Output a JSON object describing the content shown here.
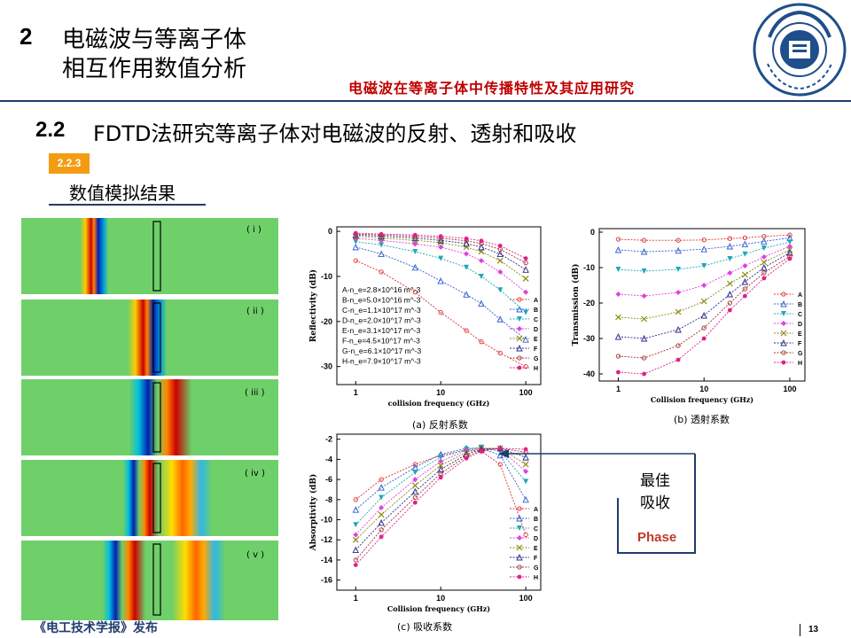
{
  "header": {
    "section_number": "2",
    "section_title_line1": "电磁波与等离子体",
    "section_title_line2": "相互作用数值分析",
    "subtitle": "电磁波在等离子体中传播特性及其应用研究",
    "logo_text": "河海大学",
    "logo_ring_text": "HOHAI UNIVERSITY"
  },
  "subsection": {
    "number": "2.2",
    "title": "FDTD法研究等离子体对电磁波的反射、透射和吸收"
  },
  "badge": "2.2.3",
  "results_title": "数值模拟结果",
  "simulation_panels": [
    "( i )",
    "( ii )",
    "( iii )",
    "( iv )",
    "( v )"
  ],
  "captions": {
    "a": "(a) 反射系数",
    "b": "(b)  透射系数",
    "c": "(c)  吸收系数"
  },
  "annotation": {
    "line1": "最佳",
    "line2": "吸收",
    "phase": "Phase"
  },
  "footer": "《电工技术学报》发布",
  "page_number": "13",
  "colors": {
    "series": [
      "#e03030",
      "#2f5fd0",
      "#20a7b8",
      "#e040e0",
      "#8a8a10",
      "#2a2a8a",
      "#a03030",
      "#e0208a"
    ],
    "accent": "#f39c12",
    "rule": "#1f3c6e",
    "subtitle": "#c00000"
  },
  "chart_data": [
    {
      "type": "line",
      "panel": "a",
      "xlabel": "collision frequency (GHz)",
      "ylabel": "Reflectivity (dB)",
      "x": [
        1,
        2,
        5,
        10,
        20,
        30,
        50,
        100
      ],
      "xscale": "log",
      "xlim": [
        0.6,
        150
      ],
      "ylim": [
        -34,
        1
      ],
      "yticks": [
        0,
        -10,
        -20,
        -30
      ],
      "xticks": [
        1,
        10,
        100
      ],
      "legend_text": [
        "A-n_e=2.8×10^16 m^-3",
        "B-n_e=5.0×10^16 m^-3",
        "C-n_e=1.1×10^17 m^-3",
        "D-n_e=2.0×10^17 m^-3",
        "E-n_e=3.1×10^17 m^-3",
        "F-n_e=4.5×10^17 m^-3",
        "G-n_e=6.1×10^17 m^-3",
        "H-n_e=7.9×10^17 m^-3"
      ],
      "series": [
        {
          "name": "A",
          "values": [
            -6.5,
            -9,
            -13.5,
            -18,
            -22,
            -24.5,
            -27,
            -30
          ]
        },
        {
          "name": "B",
          "values": [
            -3.5,
            -5,
            -8,
            -11,
            -14,
            -16,
            -19.5,
            -24
          ]
        },
        {
          "name": "C",
          "values": [
            -2.3,
            -3,
            -4.5,
            -6,
            -8,
            -10,
            -13,
            -18
          ]
        },
        {
          "name": "D",
          "values": [
            -1.6,
            -2,
            -2.8,
            -3.5,
            -5,
            -6.5,
            -9,
            -13.5
          ]
        },
        {
          "name": "E",
          "values": [
            -1.1,
            -1.5,
            -2,
            -2.5,
            -3.5,
            -4.5,
            -6.5,
            -10.5
          ]
        },
        {
          "name": "F",
          "values": [
            -0.8,
            -1.1,
            -1.5,
            -2,
            -2.7,
            -3.5,
            -5,
            -8.5
          ]
        },
        {
          "name": "G",
          "values": [
            -0.6,
            -0.8,
            -1.1,
            -1.5,
            -2.1,
            -2.7,
            -4,
            -7
          ]
        },
        {
          "name": "H",
          "values": [
            -0.4,
            -0.6,
            -0.8,
            -1.1,
            -1.6,
            -2.1,
            -3.2,
            -6
          ]
        }
      ]
    },
    {
      "type": "line",
      "panel": "b",
      "xlabel": "Collision frequency (GHz)",
      "ylabel": "Transmission (dB)",
      "x": [
        1,
        2,
        5,
        10,
        20,
        30,
        50,
        100
      ],
      "xscale": "log",
      "xlim": [
        0.6,
        150
      ],
      "ylim": [
        -42,
        1
      ],
      "yticks": [
        0,
        -10,
        -20,
        -30,
        -40
      ],
      "xticks": [
        1,
        10,
        100
      ],
      "series": [
        {
          "name": "A",
          "values": [
            -2,
            -2.3,
            -2.3,
            -2.2,
            -1.8,
            -1.6,
            -1.2,
            -0.8
          ]
        },
        {
          "name": "B",
          "values": [
            -5,
            -5.5,
            -5.2,
            -4.8,
            -4,
            -3.4,
            -2.6,
            -1.6
          ]
        },
        {
          "name": "C",
          "values": [
            -10.5,
            -11,
            -10.5,
            -9.5,
            -7.5,
            -6.2,
            -4.5,
            -2.8
          ]
        },
        {
          "name": "D",
          "values": [
            -17.5,
            -18,
            -17,
            -15,
            -11.5,
            -9.5,
            -7,
            -4
          ]
        },
        {
          "name": "E",
          "values": [
            -24,
            -24.5,
            -22.5,
            -19.5,
            -14.5,
            -12,
            -8.5,
            -5
          ]
        },
        {
          "name": "F",
          "values": [
            -29.5,
            -30,
            -27.5,
            -23.5,
            -17.5,
            -14,
            -10,
            -5.8
          ]
        },
        {
          "name": "G",
          "values": [
            -35,
            -35.5,
            -32,
            -27,
            -20,
            -16,
            -11.5,
            -6.8
          ]
        },
        {
          "name": "H",
          "values": [
            -39.5,
            -40,
            -36,
            -30,
            -22,
            -18,
            -13,
            -7.5
          ]
        }
      ]
    },
    {
      "type": "line",
      "panel": "c",
      "xlabel": "Collision frequency (GHz)",
      "ylabel": "Absorptivity (dB)",
      "x": [
        1,
        2,
        5,
        10,
        20,
        30,
        50,
        100
      ],
      "xscale": "log",
      "xlim": [
        0.6,
        150
      ],
      "ylim": [
        -17,
        -1.5
      ],
      "yticks": [
        -2,
        -4,
        -6,
        -8,
        -10,
        -12,
        -14,
        -16
      ],
      "xticks": [
        1,
        10,
        100
      ],
      "series": [
        {
          "name": "A",
          "values": [
            -8,
            -6,
            -4.5,
            -3.6,
            -3.1,
            -3.2,
            -4.5,
            -11.5
          ]
        },
        {
          "name": "B",
          "values": [
            -9,
            -6.8,
            -4.8,
            -3.5,
            -2.9,
            -2.9,
            -3.6,
            -8
          ]
        },
        {
          "name": "C",
          "values": [
            -10.5,
            -7.8,
            -5.3,
            -3.8,
            -3,
            -2.8,
            -3.2,
            -6.2
          ]
        },
        {
          "name": "D",
          "values": [
            -11.5,
            -8.8,
            -6,
            -4.2,
            -3.1,
            -2.9,
            -3,
            -5.2
          ]
        },
        {
          "name": "E",
          "values": [
            -12,
            -9.5,
            -6.6,
            -4.6,
            -3.3,
            -2.9,
            -2.9,
            -4.5
          ]
        },
        {
          "name": "F",
          "values": [
            -13,
            -10.3,
            -7.2,
            -5,
            -3.5,
            -3,
            -2.9,
            -3.8
          ]
        },
        {
          "name": "G",
          "values": [
            -14,
            -11,
            -7.8,
            -5.4,
            -3.7,
            -3.1,
            -2.9,
            -3.3
          ]
        },
        {
          "name": "H",
          "values": [
            -14.5,
            -11.7,
            -8.3,
            -5.8,
            -3.9,
            -3.2,
            -2.9,
            -3
          ]
        }
      ]
    }
  ]
}
